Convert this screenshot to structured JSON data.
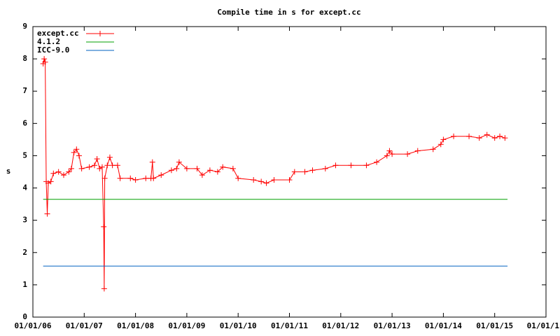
{
  "chart_data": {
    "type": "line",
    "title": "Compile time in s for except.cc",
    "y_label": "s",
    "xlim": [
      2006,
      2016
    ],
    "xticks": [
      {
        "value": 2006,
        "label": "01/01/06"
      },
      {
        "value": 2007,
        "label": "01/01/07"
      },
      {
        "value": 2008,
        "label": "01/01/08"
      },
      {
        "value": 2009,
        "label": "01/01/09"
      },
      {
        "value": 2010,
        "label": "01/01/10"
      },
      {
        "value": 2011,
        "label": "01/01/11"
      },
      {
        "value": 2012,
        "label": "01/01/12"
      },
      {
        "value": 2013,
        "label": "01/01/13"
      },
      {
        "value": 2014,
        "label": "01/01/14"
      },
      {
        "value": 2015,
        "label": "01/01/15"
      },
      {
        "value": 2016,
        "label": "01/01/1"
      }
    ],
    "ylim": [
      0,
      9
    ],
    "yticks": [
      0,
      1,
      2,
      3,
      4,
      5,
      6,
      7,
      8,
      9
    ],
    "legend": "top-left",
    "series": [
      {
        "name": "except.cc",
        "color": "#ff0000",
        "markers": true,
        "x": [
          2006.2,
          2006.22,
          2006.24,
          2006.26,
          2006.28,
          2006.3,
          2006.35,
          2006.4,
          2006.5,
          2006.6,
          2006.7,
          2006.75,
          2006.8,
          2006.85,
          2006.9,
          2006.95,
          2007.1,
          2007.2,
          2007.25,
          2007.3,
          2007.35,
          2007.38,
          2007.39,
          2007.4,
          2007.45,
          2007.5,
          2007.55,
          2007.65,
          2007.7,
          2007.9,
          2008.0,
          2008.2,
          2008.3,
          2008.33,
          2008.35,
          2008.5,
          2008.7,
          2008.8,
          2008.85,
          2009.0,
          2009.2,
          2009.3,
          2009.45,
          2009.6,
          2009.7,
          2009.9,
          2010.0,
          2010.3,
          2010.45,
          2010.55,
          2010.7,
          2011.0,
          2011.1,
          2011.3,
          2011.45,
          2011.7,
          2011.9,
          2012.2,
          2012.5,
          2012.7,
          2012.9,
          2012.95,
          2013.0,
          2013.3,
          2013.5,
          2013.8,
          2013.95,
          2014.0,
          2014.2,
          2014.5,
          2014.7,
          2014.85,
          2015.0,
          2015.1,
          2015.2
        ],
        "values": [
          7.85,
          8.0,
          7.9,
          4.2,
          3.2,
          4.15,
          4.2,
          4.45,
          4.5,
          4.4,
          4.5,
          4.6,
          5.1,
          5.2,
          5.0,
          4.6,
          4.65,
          4.7,
          4.9,
          4.6,
          4.65,
          2.8,
          0.88,
          4.3,
          4.7,
          4.95,
          4.7,
          4.7,
          4.3,
          4.3,
          4.25,
          4.3,
          4.3,
          4.8,
          4.3,
          4.4,
          4.55,
          4.6,
          4.8,
          4.6,
          4.6,
          4.4,
          4.55,
          4.5,
          4.65,
          4.6,
          4.3,
          4.25,
          4.2,
          4.15,
          4.25,
          4.25,
          4.5,
          4.5,
          4.55,
          4.6,
          4.7,
          4.7,
          4.7,
          4.8,
          5.0,
          5.15,
          5.05,
          5.05,
          5.15,
          5.2,
          5.35,
          5.5,
          5.6,
          5.6,
          5.55,
          5.65,
          5.55,
          5.6,
          5.55
        ]
      },
      {
        "name": "4.1.2",
        "color": "#00a000",
        "markers": false,
        "x": [
          2006.2,
          2015.25
        ],
        "values": [
          3.65,
          3.65
        ]
      },
      {
        "name": "ICC-9.0",
        "color": "#0060c0",
        "markers": false,
        "x": [
          2006.2,
          2015.25
        ],
        "values": [
          1.58,
          1.58
        ]
      }
    ]
  }
}
